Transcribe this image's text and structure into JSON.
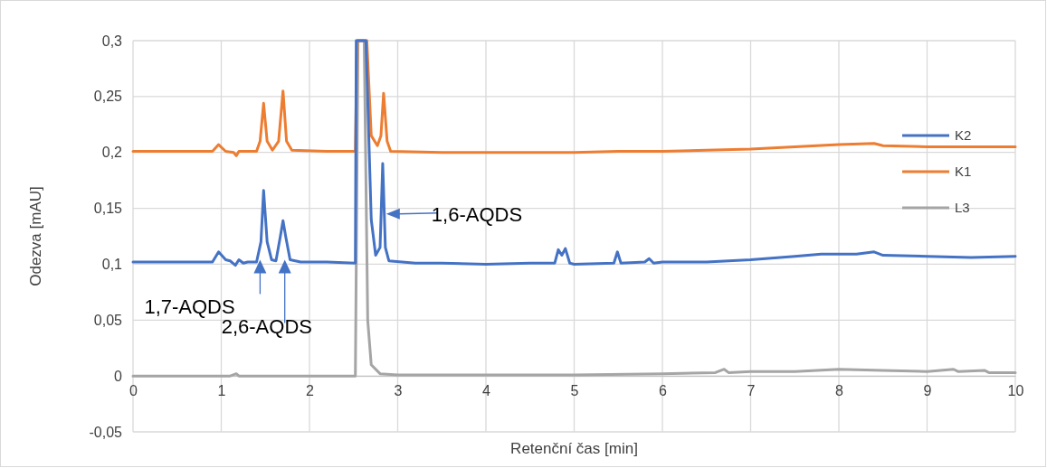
{
  "chart_data": {
    "type": "line",
    "xlabel": "Retenční čas [min]",
    "ylabel": "Odezva [mAU]",
    "xlim": [
      0,
      10
    ],
    "xticks": [
      0,
      1,
      2,
      3,
      4,
      5,
      6,
      7,
      8,
      9,
      10
    ],
    "ylim": [
      -0.05,
      0.3
    ],
    "yticks": [
      {
        "value": -0.05,
        "label": "-0,05"
      },
      0,
      {
        "value": 0.05,
        "label": "0,05"
      },
      {
        "value": 0.1,
        "label": "0,1"
      },
      {
        "value": 0.15,
        "label": "0,15"
      },
      {
        "value": 0.2,
        "label": "0,2"
      },
      {
        "value": 0.25,
        "label": "0,25"
      },
      {
        "value": 0.3,
        "label": "0,3"
      }
    ],
    "grid": true,
    "legend": "right",
    "marker": "none",
    "line_style": "solid",
    "series": [
      {
        "name": "K2",
        "color": "#4472c4",
        "x": [
          0,
          0.5,
          0.9,
          0.97,
          1.05,
          1.1,
          1.16,
          1.2,
          1.25,
          1.3,
          1.4,
          1.45,
          1.48,
          1.52,
          1.57,
          1.62,
          1.67,
          1.7,
          1.73,
          1.78,
          1.9,
          2.2,
          2.52,
          2.53,
          2.64,
          2.7,
          2.75,
          2.8,
          2.83,
          2.86,
          2.9,
          3.2,
          3.5,
          4,
          4.5,
          4.78,
          4.82,
          4.86,
          4.9,
          4.95,
          5,
          5.45,
          5.49,
          5.53,
          5.8,
          5.85,
          5.9,
          6,
          6.5,
          7,
          7.5,
          7.8,
          8.2,
          8.4,
          8.5,
          9,
          9.5,
          10
        ],
        "values": [
          0.102,
          0.102,
          0.102,
          0.111,
          0.104,
          0.103,
          0.099,
          0.104,
          0.101,
          0.102,
          0.102,
          0.12,
          0.166,
          0.12,
          0.104,
          0.103,
          0.125,
          0.139,
          0.125,
          0.104,
          0.102,
          0.102,
          0.101,
          0.3,
          0.3,
          0.14,
          0.108,
          0.115,
          0.19,
          0.115,
          0.103,
          0.101,
          0.101,
          0.1,
          0.101,
          0.101,
          0.113,
          0.108,
          0.114,
          0.101,
          0.1,
          0.101,
          0.111,
          0.101,
          0.102,
          0.105,
          0.101,
          0.102,
          0.102,
          0.104,
          0.107,
          0.109,
          0.109,
          0.111,
          0.108,
          0.107,
          0.106,
          0.107
        ]
      },
      {
        "name": "K1",
        "color": "#ed7d31",
        "x": [
          0,
          0.9,
          0.97,
          1.05,
          1.14,
          1.17,
          1.2,
          1.4,
          1.44,
          1.48,
          1.52,
          1.58,
          1.65,
          1.7,
          1.74,
          1.8,
          2.2,
          2.52,
          2.54,
          2.65,
          2.7,
          2.77,
          2.81,
          2.84,
          2.88,
          2.92,
          3.5,
          4,
          4.5,
          5,
          5.5,
          6,
          6.5,
          7,
          7.5,
          8,
          8.4,
          8.5,
          9,
          9.5,
          10
        ],
        "values": [
          0.201,
          0.201,
          0.207,
          0.201,
          0.2,
          0.197,
          0.201,
          0.201,
          0.21,
          0.244,
          0.21,
          0.202,
          0.21,
          0.255,
          0.21,
          0.202,
          0.201,
          0.201,
          0.3,
          0.3,
          0.215,
          0.206,
          0.215,
          0.253,
          0.21,
          0.201,
          0.2,
          0.2,
          0.2,
          0.2,
          0.201,
          0.201,
          0.202,
          0.203,
          0.205,
          0.207,
          0.208,
          0.206,
          0.205,
          0.205,
          0.205
        ]
      },
      {
        "name": "L3",
        "color": "#a5a5a5",
        "x": [
          0,
          1.1,
          1.17,
          1.2,
          2.52,
          2.55,
          2.62,
          2.66,
          2.7,
          2.8,
          3,
          5,
          6,
          6.6,
          6.7,
          6.75,
          7,
          7.5,
          8,
          8.5,
          9,
          9.3,
          9.35,
          9.65,
          9.7,
          10
        ],
        "values": [
          0,
          0,
          0.002,
          0,
          0,
          0.3,
          0.3,
          0.05,
          0.01,
          0.002,
          0.001,
          0.001,
          0.002,
          0.003,
          0.006,
          0.003,
          0.004,
          0.004,
          0.006,
          0.005,
          0.004,
          0.006,
          0.004,
          0.005,
          0.003,
          0.003
        ]
      }
    ],
    "annotations": [
      {
        "text": "1,7-AQDS",
        "x": 1.44,
        "y": 0.104
      },
      {
        "text": "2,6-AQDS",
        "x": 1.72,
        "y": 0.104
      },
      {
        "text": "1,6-AQDS",
        "x": 2.87,
        "y": 0.145
      }
    ]
  }
}
